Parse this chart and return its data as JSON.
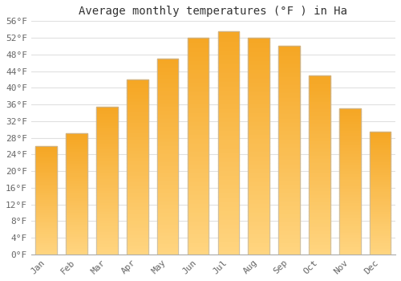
{
  "title": "Average monthly temperatures (°F ) in Ha",
  "months": [
    "Jan",
    "Feb",
    "Mar",
    "Apr",
    "May",
    "Jun",
    "Jul",
    "Aug",
    "Sep",
    "Oct",
    "Nov",
    "Dec"
  ],
  "values": [
    26.0,
    29.0,
    35.5,
    42.0,
    47.0,
    52.0,
    53.5,
    52.0,
    50.0,
    43.0,
    35.0,
    29.5
  ],
  "ylim": [
    0,
    56
  ],
  "yticks": [
    0,
    4,
    8,
    12,
    16,
    20,
    24,
    28,
    32,
    36,
    40,
    44,
    48,
    52,
    56
  ],
  "bar_color_dark": "#F5A623",
  "bar_color_light": "#FFD580",
  "bar_edge_color": "#b8b8b8",
  "background_color": "#ffffff",
  "grid_color": "#e0e0e0",
  "title_fontsize": 10,
  "tick_fontsize": 8,
  "font_family": "monospace"
}
